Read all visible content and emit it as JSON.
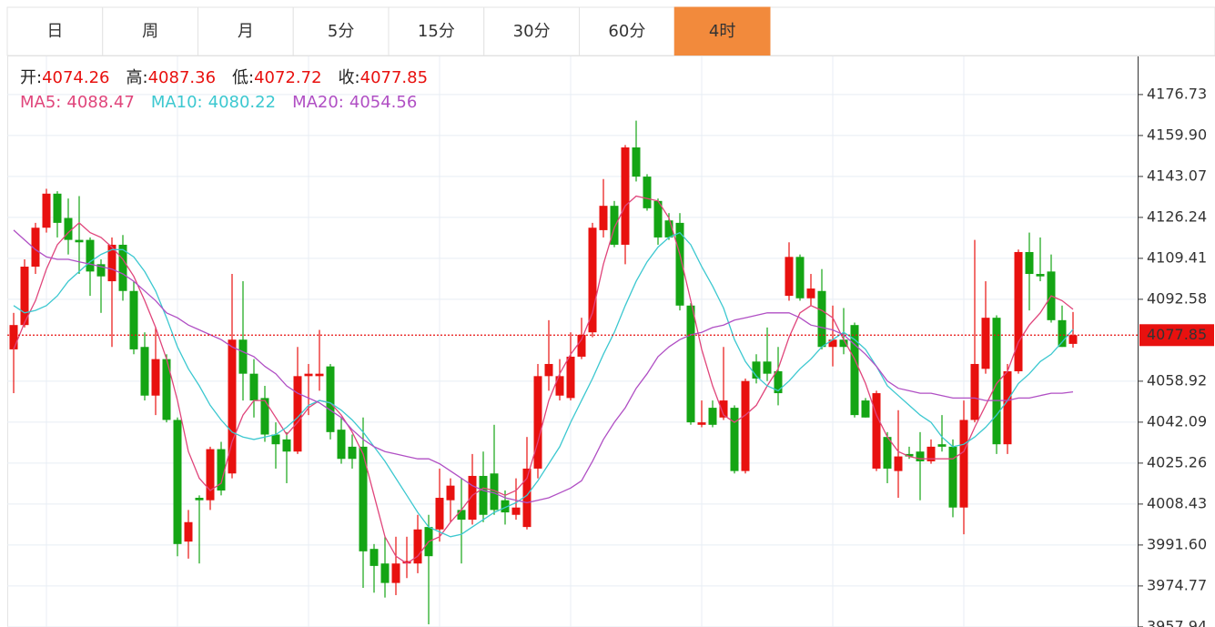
{
  "tabs": {
    "items": [
      "日",
      "周",
      "月",
      "5分",
      "15分",
      "30分",
      "60分",
      "4时"
    ],
    "active": 7
  },
  "chart_data": {
    "type": "candlestick",
    "ohlc_labels": [
      "开:",
      "高:",
      "低:",
      "收:"
    ],
    "up_color": "#e8110f",
    "down_color": "#14a514",
    "last_price_color": "#e8110f",
    "open": [
      4072,
      4082,
      4106,
      4122,
      4136,
      4126,
      4117,
      4117,
      4107,
      4100,
      4115,
      4096,
      4073,
      4053,
      4068,
      4043,
      3993,
      4011,
      4010,
      4031,
      4021,
      4076,
      4062,
      4052,
      4037,
      4035,
      4030,
      4061,
      4061,
      4065,
      4039,
      4032,
      4032,
      3990,
      3984,
      3976,
      3984,
      3984,
      3999,
      3998,
      4010,
      4006,
      4002,
      4020,
      4021,
      4010,
      4004,
      3999,
      4023,
      4061,
      4053,
      4052,
      4069,
      4079,
      4121,
      4131,
      4115,
      4155,
      4143,
      4133,
      4125,
      4124,
      4090,
      4041,
      4048,
      4044,
      4048,
      4022,
      4067,
      4067,
      4063,
      4094,
      4110,
      4093,
      4096,
      4073,
      4076,
      4082,
      4051,
      4023,
      4036,
      4022,
      4029,
      4030,
      4026,
      4033,
      4032,
      4007,
      4043,
      4064,
      4085,
      4033,
      4063,
      4112,
      4103,
      4104,
      4084,
      4074.26
    ],
    "high": [
      4087,
      4109,
      4124,
      4138,
      4137,
      4134,
      4135,
      4118,
      4109,
      4118,
      4119,
      4100,
      4079,
      4081,
      4070,
      4044,
      4006,
      4012,
      4032,
      4034,
      4103,
      4100,
      4068,
      4057,
      4042,
      4038,
      4073,
      4066,
      4080,
      4066,
      4044,
      4037,
      4044,
      3992,
      3995,
      3995,
      3995,
      4004,
      4004,
      4023,
      4019,
      4019,
      4029,
      4030,
      4041,
      4014,
      4019,
      4036,
      4066,
      4084,
      4068,
      4079,
      4085,
      4124,
      4142,
      4133,
      4156,
      4166,
      4144,
      4134,
      4128,
      4128,
      4091,
      4051,
      4051,
      4073,
      4049,
      4060,
      4070,
      4081,
      4073,
      4116,
      4111,
      4103,
      4105,
      4090,
      4089,
      4083,
      4052,
      4055,
      4038,
      4047,
      4032,
      4038,
      4035,
      4045,
      4035,
      4051,
      4117,
      4100,
      4086,
      4066,
      4113,
      4120,
      4118,
      4111,
      4090,
      4087.36
    ],
    "low": [
      4054,
      4081,
      4103,
      4120,
      4118,
      4111,
      4103,
      4094,
      4087,
      4073,
      4092,
      4070,
      4051,
      4045,
      4042,
      3987,
      3986,
      3984,
      4006,
      4012,
      4019,
      4051,
      4044,
      4034,
      4023,
      4017,
      4029,
      4045,
      4055,
      4035,
      4025,
      4023,
      3974,
      3972,
      3970,
      3971,
      3978,
      3980,
      3959,
      3993,
      4001,
      3984,
      4000,
      4001,
      4004,
      4000,
      4002,
      3998,
      4019,
      4055,
      4051,
      4051,
      4068,
      4077,
      4118,
      4114,
      4107,
      4141,
      4129,
      4115,
      4117,
      4088,
      4041,
      4040,
      4040,
      4043,
      4021,
      4021,
      4058,
      4059,
      4049,
      4092,
      4092,
      4090,
      4072,
      4065,
      4070,
      4044,
      4044,
      4022,
      4017,
      4011,
      4027,
      4010,
      4025,
      4030,
      4003,
      3996,
      4042,
      4062,
      4029,
      4029,
      4062,
      4088,
      4100,
      4083,
      4073,
      4072.72
    ],
    "close": [
      4082,
      4106,
      4122,
      4136,
      4124,
      4117,
      4116,
      4104,
      4102,
      4115,
      4096,
      4072,
      4053,
      4068,
      4043,
      3992,
      4001,
      4010,
      4031,
      4014,
      4076,
      4062,
      4051,
      4037,
      4033,
      4030,
      4061,
      4062,
      4062,
      4038,
      4027,
      4027,
      3989,
      3983,
      3976,
      3984,
      3985,
      3998,
      3987,
      4011,
      4016,
      4002,
      4020,
      4004,
      4006,
      4005,
      4007,
      4023,
      4061,
      4066,
      4061,
      4069,
      4078,
      4122,
      4131,
      4115,
      4155,
      4143,
      4130,
      4118,
      4118,
      4090,
      4042,
      4042,
      4041,
      4051,
      4022,
      4059,
      4060,
      4062,
      4054,
      4110,
      4093,
      4097,
      4073,
      4076,
      4073,
      4045,
      4044,
      4054,
      4023,
      4028,
      4028,
      4026,
      4032,
      4032,
      4007,
      4043,
      4066,
      4085,
      4033,
      4063,
      4112,
      4103,
      4102,
      4084,
      4073,
      4077.85
    ],
    "series": [
      {
        "name": "MA5:",
        "color": "#e0457b",
        "values": [
          4072,
          4083,
          4092,
          4105,
          4115,
          4120,
          4124,
          4120,
          4118,
          4114,
          4109,
          4102,
          4092,
          4081,
          4068,
          4051,
          4030,
          4019,
          4014,
          4017,
          4034,
          4045,
          4051,
          4051,
          4044,
          4037,
          4042,
          4048,
          4051,
          4050,
          4045,
          4038,
          4029,
          4012,
          3995,
          3987,
          3984,
          3987,
          3993,
          3995,
          4001,
          4006,
          4012,
          4015,
          4014,
          4012,
          4014,
          4019,
          4034,
          4051,
          4062,
          4070,
          4076,
          4087,
          4107,
          4122,
          4131,
          4135,
          4134,
          4133,
          4126,
          4111,
          4092,
          4072,
          4057,
          4045,
          4042,
          4045,
          4049,
          4057,
          4064,
          4077,
          4087,
          4090,
          4088,
          4085,
          4076,
          4068,
          4058,
          4045,
          4036,
          4030,
          4028,
          4027,
          4027,
          4027,
          4027,
          4030,
          4040,
          4049,
          4058,
          4063,
          4075,
          4082,
          4087,
          4094,
          4092,
          4088.47
        ]
      },
      {
        "name": "MA10:",
        "color": "#3cc8d0",
        "values": [
          4090,
          4087,
          4088,
          4090,
          4094,
          4100,
          4104,
          4108,
          4111,
          4113,
          4113,
          4110,
          4104,
          4096,
          4085,
          4073,
          4064,
          4057,
          4049,
          4043,
          4038,
          4036,
          4035,
          4036,
          4037,
          4040,
          4044,
          4049,
          4051,
          4050,
          4047,
          4043,
          4038,
          4032,
          4026,
          4019,
          4012,
          4005,
          3999,
          3997,
          3995,
          3996,
          3999,
          4002,
          4005,
          4007,
          4009,
          4012,
          4018,
          4025,
          4032,
          4042,
          4051,
          4060,
          4070,
          4079,
          4090,
          4100,
          4108,
          4114,
          4118,
          4120,
          4115,
          4106,
          4098,
          4089,
          4076,
          4067,
          4061,
          4057,
          4055,
          4059,
          4064,
          4068,
          4073,
          4076,
          4079,
          4076,
          4072,
          4065,
          4057,
          4053,
          4049,
          4045,
          4042,
          4036,
          4032,
          4033,
          4036,
          4040,
          4045,
          4051,
          4058,
          4062,
          4067,
          4070,
          4075,
          4080.22
        ]
      },
      {
        "name": "MA20:",
        "color": "#b04fc4",
        "values": [
          4121,
          4117,
          4113,
          4110,
          4109,
          4109,
          4108,
          4107,
          4106,
          4105,
          4103,
          4100,
          4096,
          4092,
          4087,
          4085,
          4082,
          4080,
          4078,
          4076,
          4073,
          4071,
          4069,
          4065,
          4062,
          4057,
          4054,
          4052,
          4050,
          4047,
          4044,
          4039,
          4035,
          4032,
          4030,
          4029,
          4028,
          4027,
          4027,
          4025,
          4022,
          4019,
          4016,
          4014,
          4013,
          4011,
          4010,
          4009,
          4010,
          4011,
          4013,
          4015,
          4018,
          4026,
          4035,
          4042,
          4048,
          4056,
          4062,
          4069,
          4073,
          4076,
          4078,
          4079,
          4081,
          4082,
          4084,
          4085,
          4086,
          4087,
          4087,
          4087,
          4085,
          4082,
          4081,
          4080,
          4078,
          4074,
          4070,
          4065,
          4059,
          4056,
          4055,
          4054,
          4054,
          4053,
          4052,
          4052,
          4052,
          4051,
          4051,
          4051,
          4052,
          4052,
          4053,
          4054,
          4054,
          4054.56
        ]
      }
    ],
    "ylim": [
      3957.9,
      4192.4
    ],
    "yticks": [
      4176.73,
      {
        "value": 4159.9,
        "label": "4159.90"
      },
      4143.07,
      4126.24,
      4109.41,
      4092.58,
      4058.92,
      4042.09,
      4025.26,
      4008.43,
      {
        "value": 3991.6,
        "label": "3991.60"
      },
      3974.77,
      3957.94
    ],
    "grid": true
  }
}
